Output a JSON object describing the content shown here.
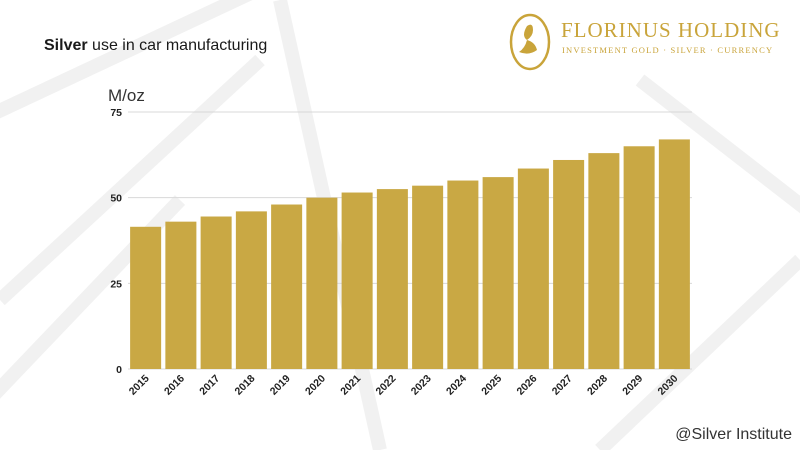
{
  "header": {
    "title_bold": "Silver",
    "title_rest": " use in car manufacturing"
  },
  "logo": {
    "name": "FLORINUS HOLDING",
    "tagline": "INVESTMENT GOLD · SILVER · CURRENCY"
  },
  "footer": {
    "source": "@Silver Institute"
  },
  "colors": {
    "bar": "#c9a844",
    "grid": "#d8d8d8",
    "brand": "#c9a43a"
  },
  "chart_data": {
    "type": "bar",
    "categories": [
      "2015",
      "2016",
      "2017",
      "2018",
      "2019",
      "2020",
      "2021",
      "2022",
      "2023",
      "2024",
      "2025",
      "2026",
      "2027",
      "2028",
      "2029",
      "2030"
    ],
    "values": [
      41.5,
      43,
      44.5,
      46,
      48,
      50,
      51.5,
      52.5,
      53.5,
      55,
      56,
      58.5,
      61,
      63,
      65,
      67
    ],
    "ylabel": "M/oz",
    "ylim": [
      0,
      75
    ],
    "yticks": [
      0,
      25,
      50,
      75
    ],
    "grid": true
  }
}
